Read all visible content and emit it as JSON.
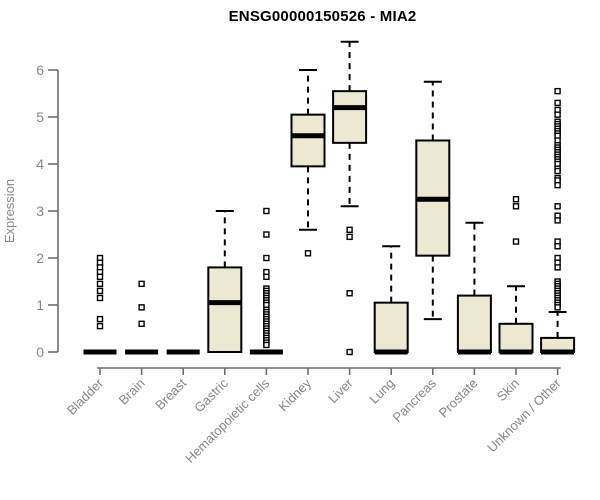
{
  "title": "ENSG00000150526 - MIA2",
  "chart_data": {
    "type": "boxplot",
    "title": "ENSG00000150526 - MIA2",
    "ylabel": "Expression",
    "xlabel": "",
    "ylim": [
      0,
      6
    ],
    "yticks": [
      0,
      1,
      2,
      3,
      4,
      5,
      6
    ],
    "grid": false,
    "legend": "none",
    "categories": [
      "Bladder",
      "Brain",
      "Breast",
      "Gastric",
      "Hematopoietic cells",
      "Kidney",
      "Liver",
      "Lung",
      "Pancreas",
      "Prostate",
      "Skin",
      "Unknown / Other"
    ],
    "series": [
      {
        "name": "Bladder",
        "whisker_low": 0,
        "q1": 0,
        "median": 0,
        "q3": 0,
        "whisker_high": 0,
        "outliers": [
          2.0,
          1.9,
          1.8,
          1.7,
          1.6,
          1.45,
          1.3,
          1.15,
          0.7,
          0.55
        ]
      },
      {
        "name": "Brain",
        "whisker_low": 0,
        "q1": 0,
        "median": 0,
        "q3": 0,
        "whisker_high": 0,
        "outliers": [
          1.45,
          0.95,
          0.6
        ]
      },
      {
        "name": "Breast",
        "whisker_low": 0,
        "q1": 0,
        "median": 0,
        "q3": 0,
        "whisker_high": 0,
        "outliers": []
      },
      {
        "name": "Gastric",
        "whisker_low": 0,
        "q1": 0,
        "median": 1.05,
        "q3": 1.8,
        "whisker_high": 3.0,
        "outliers": []
      },
      {
        "name": "Hematopoietic cells",
        "whisker_low": 0,
        "q1": 0,
        "median": 0,
        "q3": 0,
        "whisker_high": 0,
        "outliers": [
          3.0,
          2.5,
          2.0,
          1.7,
          1.6,
          1.35,
          1.3,
          1.25,
          1.2,
          1.15,
          1.1,
          1.05,
          1.0,
          0.9,
          0.85,
          0.8,
          0.75,
          0.7,
          0.65,
          0.6,
          0.55,
          0.5,
          0.45,
          0.4,
          0.35,
          0.3,
          0.25,
          0.2,
          0.15
        ]
      },
      {
        "name": "Kidney",
        "whisker_low": 2.6,
        "q1": 3.95,
        "median": 4.6,
        "q3": 5.05,
        "whisker_high": 6.0,
        "outliers": [
          2.1
        ]
      },
      {
        "name": "Liver",
        "whisker_low": 3.1,
        "q1": 4.45,
        "median": 5.2,
        "q3": 5.55,
        "whisker_high": 6.6,
        "outliers": [
          2.6,
          2.45,
          1.25,
          0.0
        ]
      },
      {
        "name": "Lung",
        "whisker_low": 0,
        "q1": 0,
        "median": 0,
        "q3": 1.05,
        "whisker_high": 2.25,
        "outliers": []
      },
      {
        "name": "Pancreas",
        "whisker_low": 0.7,
        "q1": 2.05,
        "median": 3.25,
        "q3": 4.5,
        "whisker_high": 5.75,
        "outliers": []
      },
      {
        "name": "Prostate",
        "whisker_low": 0,
        "q1": 0,
        "median": 0,
        "q3": 1.2,
        "whisker_high": 2.75,
        "outliers": []
      },
      {
        "name": "Skin",
        "whisker_low": 0,
        "q1": 0,
        "median": 0,
        "q3": 0.6,
        "whisker_high": 1.4,
        "outliers": [
          3.25,
          3.1,
          2.35
        ]
      },
      {
        "name": "Unknown / Other",
        "whisker_low": 0,
        "q1": 0,
        "median": 0,
        "q3": 0.3,
        "whisker_high": 0.85,
        "outliers": [
          5.55,
          5.3,
          5.15,
          5.05,
          4.9,
          4.85,
          4.8,
          4.75,
          4.7,
          4.65,
          4.6,
          4.5,
          4.4,
          4.35,
          4.3,
          4.25,
          4.2,
          4.15,
          4.1,
          4.05,
          4.0,
          3.9,
          3.85,
          3.7,
          3.65,
          3.55,
          3.1,
          2.9,
          2.8,
          2.35,
          2.25,
          2.0,
          1.9,
          1.8,
          1.5,
          1.45,
          1.4,
          1.35,
          1.3,
          1.25,
          1.2,
          1.15,
          1.1,
          1.05,
          1.0,
          0.95
        ]
      }
    ],
    "colors": {
      "box_fill": "#EDE8D1",
      "box_stroke": "#000000",
      "median": "#000000",
      "whisker": "#000000",
      "outlier_stroke": "#000000",
      "outlier_fill": "#FFFFFF",
      "axis_line": "#6E6E6E",
      "axis_text": "#878787",
      "title_text": "#000000",
      "background": "#FFFFFF"
    }
  }
}
